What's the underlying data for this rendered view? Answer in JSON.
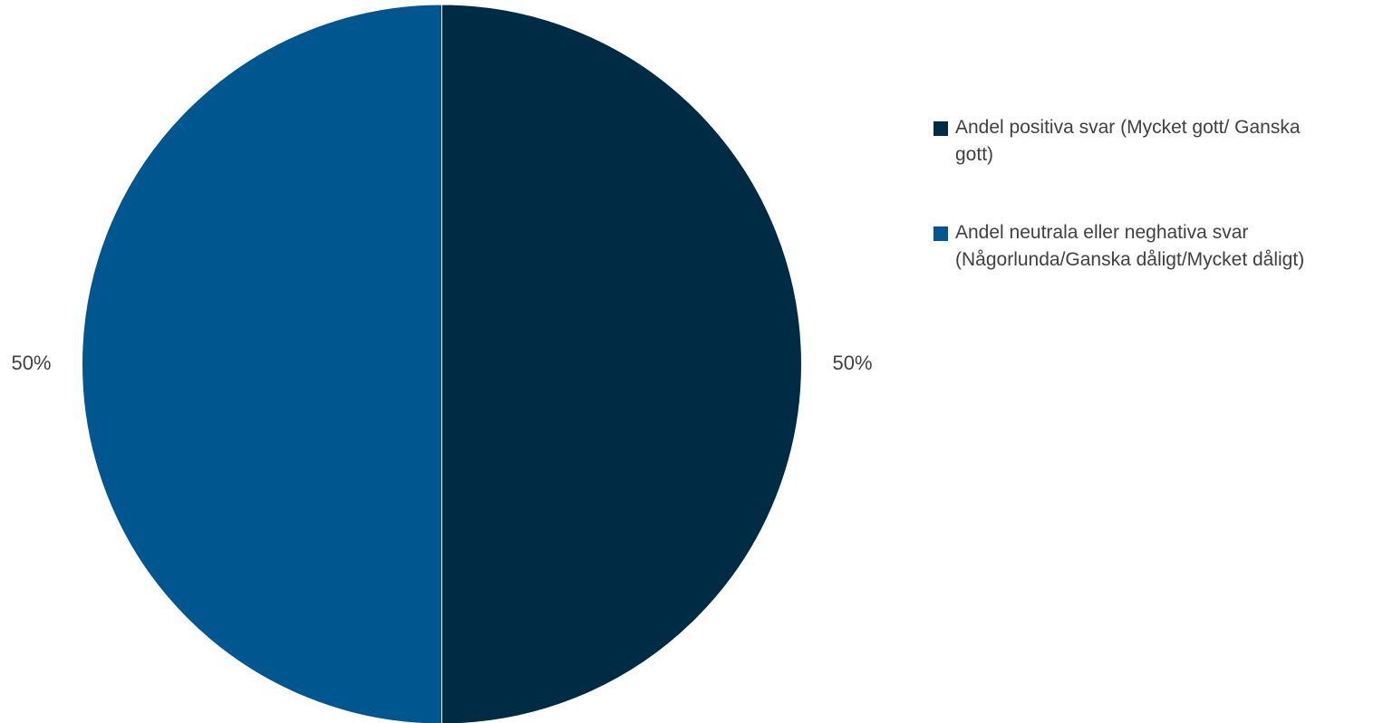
{
  "chart_data": {
    "type": "pie",
    "title": "",
    "categories": [
      "Andel positiva svar (Mycket gott/ Ganska gott)",
      "Andel neutrala eller neghativa svar (Någorlunda/Ganska dåligt/Mycket dåligt)"
    ],
    "values": [
      50,
      50
    ],
    "data_labels": [
      "50%",
      "50%"
    ],
    "colors": [
      "#002b45",
      "#005790"
    ],
    "legend_position": "right"
  },
  "legend": {
    "items": [
      {
        "label_line1": "Andel positiva svar (Mycket gott/ Ganska",
        "label_line2": "gott)",
        "color": "#002b45"
      },
      {
        "label_line1": "Andel neutrala eller neghativa svar",
        "label_line2": "(Någorlunda/Ganska dåligt/Mycket dåligt)",
        "color": "#005790"
      }
    ]
  }
}
